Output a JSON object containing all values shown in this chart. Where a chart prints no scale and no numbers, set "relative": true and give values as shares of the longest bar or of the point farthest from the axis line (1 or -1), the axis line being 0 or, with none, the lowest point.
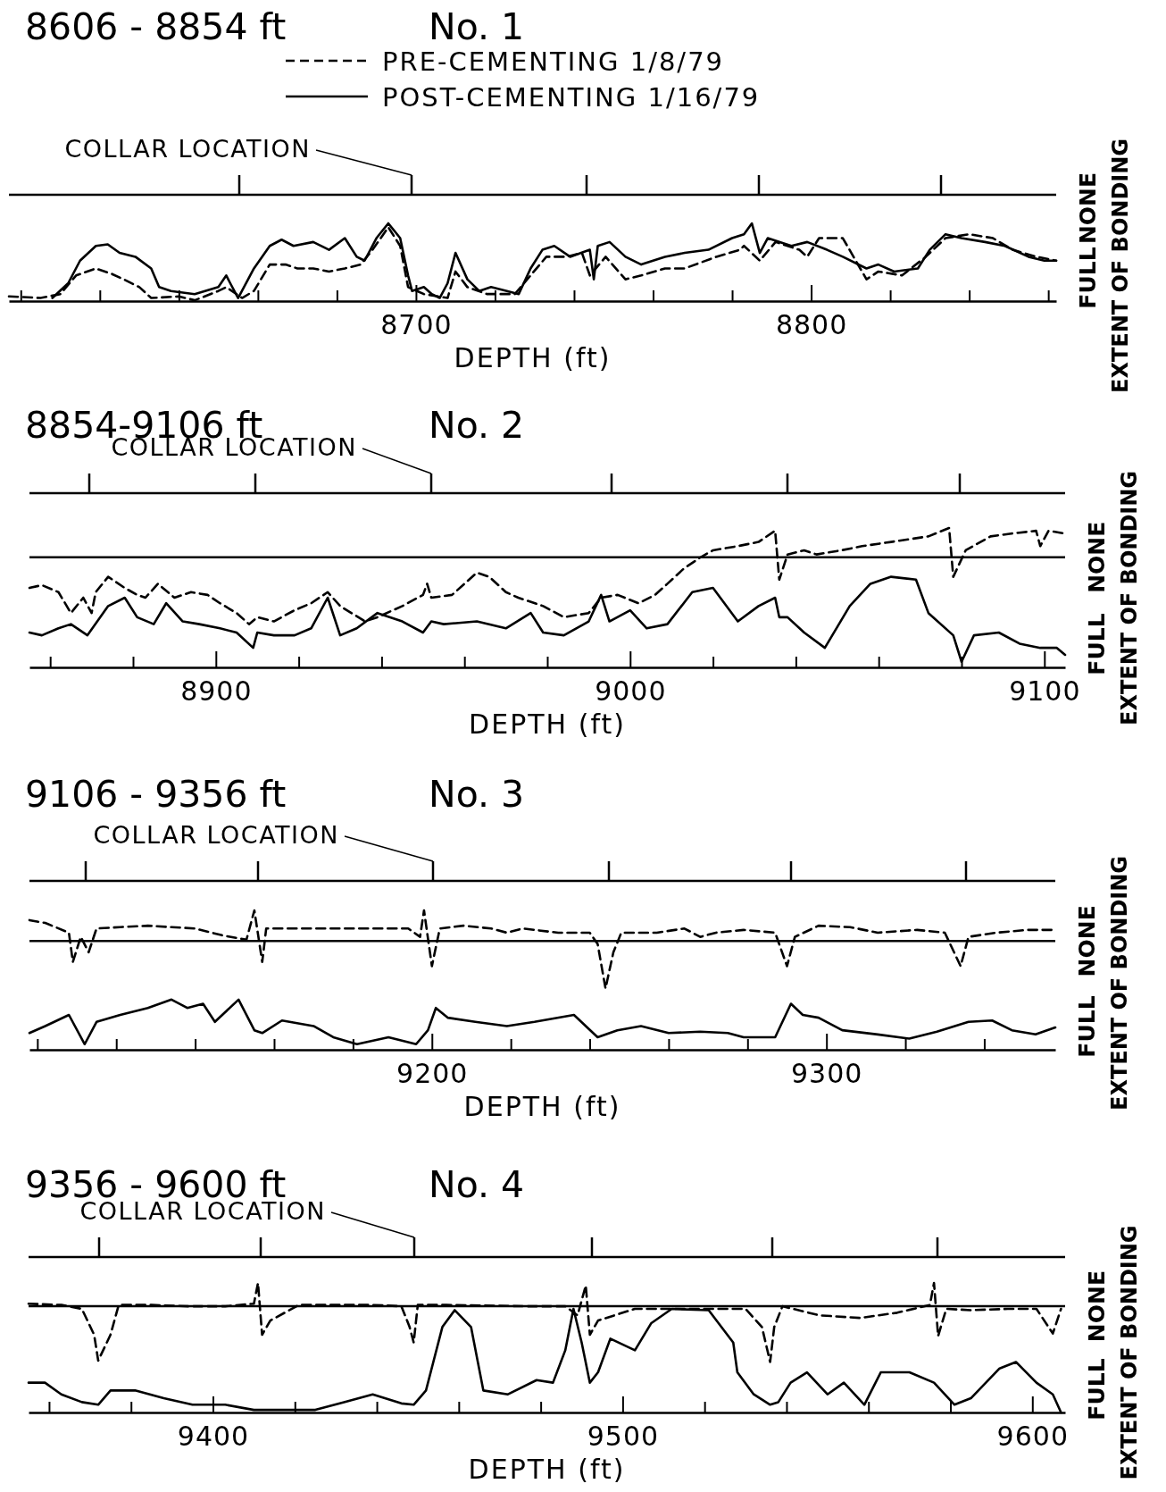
{
  "chart_data": [
    {
      "type": "line",
      "title": "8606 - 8854 ft",
      "subtitle": "No. 1",
      "xlabel": "DEPTH (ft)",
      "ylabel": "EXTENT OF BONDING",
      "legend": "top",
      "relative": true,
      "xlim": [
        8597,
        8862
      ],
      "xticks": [
        {
          "value": 8600,
          "label": null
        },
        {
          "value": 8620,
          "label": null
        },
        {
          "value": 8640,
          "label": null
        },
        {
          "value": 8660,
          "label": null
        },
        {
          "value": 8680,
          "label": null
        },
        8700,
        {
          "value": 8720,
          "label": null
        },
        {
          "value": 8740,
          "label": null
        },
        {
          "value": 8760,
          "label": null
        },
        {
          "value": 8780,
          "label": null
        },
        8800,
        {
          "value": 8820,
          "label": null
        },
        {
          "value": 8840,
          "label": null
        },
        {
          "value": 8860,
          "label": null
        }
      ],
      "annotations": [
        "COLLAR LOCATION",
        "FULL",
        "NONE"
      ],
      "series": [
        {
          "name": "PRE-CEMENTING 1/8/79",
          "color": "#000000",
          "line_style": "dashed",
          "x": [
            8597,
            8605,
            8610,
            8614,
            8619,
            8623,
            8626,
            8630,
            8633,
            8640,
            8644,
            8650,
            8652,
            8656,
            8659,
            8663,
            8667,
            8670,
            8674,
            8678,
            8682,
            8686,
            8689,
            8693,
            8696,
            8698,
            8702,
            8708,
            8710,
            8713,
            8718,
            8725,
            8729,
            8733,
            8738,
            8742,
            8744,
            8748,
            8753,
            8757,
            8763,
            8768,
            8776,
            8782,
            8783,
            8787,
            8791,
            8797,
            8799,
            8802,
            8808,
            8814,
            8817,
            8823,
            8829,
            8834,
            8840,
            8846,
            8851,
            8857,
            8862
          ],
          "values": [
            0.06,
            0.04,
            0.09,
            0.33,
            0.42,
            0.35,
            0.28,
            0.18,
            0.04,
            0.06,
            0.01,
            0.13,
            0.18,
            0.04,
            0.13,
            0.47,
            0.47,
            0.42,
            0.42,
            0.38,
            0.42,
            0.47,
            0.66,
            0.95,
            0.71,
            0.18,
            0.09,
            0.04,
            0.38,
            0.18,
            0.09,
            0.09,
            0.33,
            0.57,
            0.57,
            0.62,
            0.33,
            0.57,
            0.28,
            0.33,
            0.42,
            0.42,
            0.57,
            0.66,
            0.71,
            0.52,
            0.76,
            0.66,
            0.57,
            0.81,
            0.81,
            0.28,
            0.38,
            0.33,
            0.57,
            0.81,
            0.86,
            0.81,
            0.66,
            0.57,
            0.52
          ]
        },
        {
          "name": "POST-CEMENTING 1/16/79",
          "color": "#000000",
          "line_style": "solid",
          "x": [
            8608,
            8612,
            8615,
            8619,
            8622,
            8625,
            8629,
            8633,
            8635,
            8638,
            8644,
            8650,
            8652,
            8653,
            8655,
            8659,
            8663,
            8666,
            8669,
            8674,
            8678,
            8682,
            8685,
            8687,
            8690,
            8693,
            8696,
            8698,
            8699,
            8702,
            8704,
            8706,
            8708,
            8710,
            8713,
            8716,
            8719,
            8723,
            8726,
            8729,
            8732,
            8735,
            8739,
            8744,
            8745,
            8746,
            8749,
            8753,
            8757,
            8763,
            8768,
            8774,
            8780,
            8783,
            8785,
            8787,
            8789,
            8795,
            8799,
            8804,
            8808,
            8814,
            8817,
            8821,
            8827,
            8830,
            8834,
            8838,
            8844,
            8849,
            8855,
            8859,
            8862
          ],
          "values": [
            0.04,
            0.23,
            0.52,
            0.71,
            0.73,
            0.62,
            0.57,
            0.42,
            0.18,
            0.13,
            0.09,
            0.18,
            0.33,
            0.23,
            0.04,
            0.42,
            0.71,
            0.79,
            0.71,
            0.76,
            0.66,
            0.81,
            0.57,
            0.52,
            0.81,
            1.0,
            0.81,
            0.33,
            0.13,
            0.18,
            0.09,
            0.04,
            0.23,
            0.62,
            0.28,
            0.13,
            0.18,
            0.13,
            0.09,
            0.42,
            0.66,
            0.71,
            0.57,
            0.66,
            0.28,
            0.71,
            0.76,
            0.57,
            0.47,
            0.57,
            0.62,
            0.66,
            0.81,
            0.86,
            1.0,
            0.62,
            0.81,
            0.71,
            0.76,
            0.66,
            0.57,
            0.42,
            0.47,
            0.38,
            0.42,
            0.66,
            0.86,
            0.81,
            0.76,
            0.71,
            0.57,
            0.52,
            0.52
          ]
        }
      ]
    },
    {
      "type": "line",
      "title": "8854-9106 ft",
      "subtitle": "No. 2",
      "xlabel": "DEPTH (ft)",
      "ylabel": "EXTENT OF BONDING",
      "relative": true,
      "xlim": [
        8855,
        9105
      ],
      "xticks": [
        {
          "value": 8860,
          "label": null
        },
        {
          "value": 8880,
          "label": null
        },
        8900,
        {
          "value": 8920,
          "label": null
        },
        {
          "value": 8940,
          "label": null
        },
        {
          "value": 8960,
          "label": null
        },
        {
          "value": 8980,
          "label": null
        },
        9000,
        {
          "value": 9020,
          "label": null
        },
        {
          "value": 9040,
          "label": null
        },
        {
          "value": 9060,
          "label": null
        },
        {
          "value": 9080,
          "label": null
        },
        9100
      ],
      "ref_lines": [
        {
          "axis": "y",
          "value": 0.79,
          "label": null
        }
      ],
      "annotations": [
        "COLLAR LOCATION",
        "FULL",
        "NONE"
      ],
      "series": [
        {
          "color": "#000000",
          "line_style": "dashed",
          "x": [
            8855,
            8858,
            8862,
            8865,
            8868,
            8870,
            8871,
            8874,
            8878,
            8881,
            8883,
            8886,
            8890,
            8894,
            8898,
            8901,
            8905,
            8908,
            8910,
            8914,
            8919,
            8923,
            8927,
            8930,
            8936,
            8939,
            8945,
            8950,
            8951,
            8952,
            8957,
            8963,
            8966,
            8970,
            8973,
            8979,
            8984,
            8990,
            8993,
            8997,
            9002,
            9006,
            9009,
            9013,
            9017,
            9020,
            9026,
            9031,
            9035,
            9036,
            9038,
            9042,
            9045,
            9051,
            9056,
            9063,
            9072,
            9077,
            9078,
            9081,
            9087,
            9092,
            9098,
            9099,
            9101,
            9105
          ],
          "values": [
            0.57,
            0.59,
            0.54,
            0.39,
            0.5,
            0.39,
            0.54,
            0.65,
            0.57,
            0.52,
            0.5,
            0.6,
            0.5,
            0.54,
            0.52,
            0.46,
            0.39,
            0.31,
            0.36,
            0.33,
            0.41,
            0.46,
            0.54,
            0.44,
            0.33,
            0.36,
            0.44,
            0.52,
            0.6,
            0.5,
            0.52,
            0.68,
            0.65,
            0.54,
            0.5,
            0.44,
            0.36,
            0.39,
            0.5,
            0.52,
            0.46,
            0.52,
            0.6,
            0.71,
            0.79,
            0.84,
            0.87,
            0.9,
            0.98,
            0.63,
            0.81,
            0.84,
            0.81,
            0.84,
            0.87,
            0.9,
            0.94,
            1,
            0.65,
            0.84,
            0.94,
            0.96,
            0.98,
            0.87,
            0.98,
            0.96
          ]
        },
        {
          "color": "#000000",
          "line_style": "solid",
          "x": [
            8855,
            8858,
            8862,
            8865,
            8869,
            8874,
            8878,
            8881,
            8885,
            8888,
            8892,
            8896,
            8901,
            8905,
            8909,
            8910,
            8914,
            8919,
            8923,
            8927,
            8930,
            8934,
            8939,
            8945,
            8950,
            8952,
            8955,
            8963,
            8970,
            8976,
            8979,
            8984,
            8990,
            8993,
            8995,
            9000,
            9004,
            9009,
            9015,
            9020,
            9026,
            9031,
            9035,
            9036,
            9038,
            9042,
            9047,
            9053,
            9058,
            9063,
            9069,
            9072,
            9078,
            9080,
            9083,
            9089,
            9094,
            9099,
            9103,
            9105
          ],
          "values": [
            0.25,
            0.23,
            0.28,
            0.31,
            0.23,
            0.44,
            0.5,
            0.36,
            0.31,
            0.46,
            0.33,
            0.31,
            0.28,
            0.25,
            0.14,
            0.25,
            0.23,
            0.23,
            0.28,
            0.5,
            0.23,
            0.28,
            0.39,
            0.33,
            0.25,
            0.33,
            0.31,
            0.33,
            0.28,
            0.39,
            0.25,
            0.23,
            0.33,
            0.52,
            0.33,
            0.41,
            0.28,
            0.31,
            0.54,
            0.57,
            0.33,
            0.44,
            0.5,
            0.36,
            0.36,
            0.25,
            0.14,
            0.44,
            0.6,
            0.65,
            0.63,
            0.39,
            0.23,
            0.04,
            0.23,
            0.25,
            0.17,
            0.14,
            0.14,
            0.09
          ]
        }
      ]
    },
    {
      "type": "line",
      "title": "9106 - 9356 ft",
      "subtitle": "No. 3",
      "xlabel": "DEPTH (ft)",
      "ylabel": "EXTENT OF BONDING",
      "relative": true,
      "xlim": [
        9098,
        9358
      ],
      "xticks": [
        {
          "value": 9100,
          "label": null
        },
        {
          "value": 9120,
          "label": null
        },
        {
          "value": 9140,
          "label": null
        },
        {
          "value": 9160,
          "label": null
        },
        {
          "value": 9180,
          "label": null
        },
        9200,
        {
          "value": 9220,
          "label": null
        },
        {
          "value": 9240,
          "label": null
        },
        {
          "value": 9260,
          "label": null
        },
        {
          "value": 9280,
          "label": null
        },
        9300,
        {
          "value": 9320,
          "label": null
        },
        {
          "value": 9340,
          "label": null
        }
      ],
      "ref_lines": [
        {
          "axis": "y",
          "value": 0.78,
          "label": null
        }
      ],
      "annotations": [
        "COLLAR LOCATION",
        "FULL",
        "NONE"
      ],
      "series": [
        {
          "color": "#000000",
          "line_style": "dashed",
          "x": [
            9098,
            9102,
            9108,
            9109,
            9111,
            9113,
            9115,
            9121,
            9128,
            9134,
            9140,
            9147,
            9153,
            9155,
            9157,
            9158,
            9166,
            9175,
            9185,
            9194,
            9197,
            9198,
            9200,
            9202,
            9208,
            9215,
            9219,
            9223,
            9232,
            9240,
            9242,
            9244,
            9246,
            9248,
            9257,
            9264,
            9268,
            9272,
            9279,
            9287,
            9290,
            9292,
            9298,
            9306,
            9313,
            9323,
            9330,
            9334,
            9336,
            9343,
            9351,
            9358
          ],
          "values": [
            0.93,
            0.91,
            0.84,
            0.63,
            0.81,
            0.7,
            0.87,
            0.88,
            0.89,
            0.88,
            0.87,
            0.82,
            0.79,
            1,
            0.63,
            0.87,
            0.87,
            0.87,
            0.87,
            0.87,
            0.81,
            1,
            0.6,
            0.87,
            0.89,
            0.87,
            0.84,
            0.87,
            0.84,
            0.84,
            0.76,
            0.44,
            0.7,
            0.84,
            0.84,
            0.87,
            0.81,
            0.84,
            0.86,
            0.84,
            0.6,
            0.81,
            0.89,
            0.88,
            0.84,
            0.86,
            0.84,
            0.6,
            0.81,
            0.84,
            0.86,
            0.86
          ]
        },
        {
          "color": "#000000",
          "line_style": "solid",
          "x": [
            9098,
            9102,
            9108,
            9112,
            9115,
            9121,
            9128,
            9134,
            9138,
            9142,
            9145,
            9151,
            9155,
            9157,
            9162,
            9170,
            9175,
            9181,
            9189,
            9196,
            9199,
            9201,
            9204,
            9211,
            9219,
            9226,
            9236,
            9242,
            9247,
            9253,
            9260,
            9268,
            9275,
            9279,
            9287,
            9291,
            9294,
            9298,
            9304,
            9313,
            9321,
            9328,
            9336,
            9342,
            9347,
            9353,
            9358
          ],
          "values": [
            0.12,
            0.17,
            0.25,
            0.04,
            0.2,
            0.25,
            0.3,
            0.36,
            0.3,
            0.33,
            0.2,
            0.36,
            0.14,
            0.12,
            0.21,
            0.17,
            0.09,
            0.04,
            0.09,
            0.04,
            0.14,
            0.3,
            0.23,
            0.2,
            0.17,
            0.2,
            0.25,
            0.09,
            0.14,
            0.17,
            0.12,
            0.13,
            0.12,
            0.09,
            0.09,
            0.33,
            0.25,
            0.23,
            0.14,
            0.11,
            0.08,
            0.13,
            0.2,
            0.21,
            0.14,
            0.11,
            0.16
          ]
        }
      ]
    },
    {
      "type": "line",
      "title": "9356 - 9600 ft",
      "subtitle": "No.  4",
      "xlabel": "DEPTH (ft)",
      "ylabel": "EXTENT OF BONDING",
      "relative": true,
      "xlim": [
        9355,
        9608
      ],
      "xticks": [
        {
          "value": 9360,
          "label": null
        },
        {
          "value": 9380,
          "label": null
        },
        9400,
        {
          "value": 9420,
          "label": null
        },
        {
          "value": 9440,
          "label": null
        },
        {
          "value": 9460,
          "label": null
        },
        {
          "value": 9480,
          "label": null
        },
        9500,
        {
          "value": 9520,
          "label": null
        },
        {
          "value": 9540,
          "label": null
        },
        {
          "value": 9560,
          "label": null
        },
        {
          "value": 9580,
          "label": null
        },
        9600
      ],
      "ref_lines": [
        {
          "axis": "y",
          "value": 0.82,
          "label": null
        }
      ],
      "annotations": [
        "COLLAR LOCATION",
        "FULL",
        "NONE"
      ],
      "series": [
        {
          "color": "#000000",
          "line_style": "dashed",
          "x": [
            9355,
            9363,
            9368,
            9371,
            9372,
            9375,
            9377,
            9385,
            9394,
            9403,
            9410,
            9411,
            9412,
            9414,
            9421,
            9430,
            9439,
            9446,
            9448,
            9449,
            9450,
            9457,
            9476,
            9486,
            9489,
            9491,
            9492,
            9494,
            9503,
            9512,
            9521,
            9530,
            9534,
            9536,
            9537,
            9539,
            9548,
            9558,
            9567,
            9575,
            9576,
            9577,
            9579,
            9585,
            9594,
            9601,
            9605,
            9607
          ],
          "values": [
            0.84,
            0.83,
            0.8,
            0.6,
            0.4,
            0.6,
            0.83,
            0.83,
            0.82,
            0.82,
            0.84,
            1,
            0.6,
            0.71,
            0.83,
            0.83,
            0.83,
            0.82,
            0.66,
            0.54,
            0.83,
            0.83,
            0.82,
            0.82,
            0.75,
            0.98,
            0.6,
            0.71,
            0.8,
            0.8,
            0.8,
            0.8,
            0.66,
            0.39,
            0.66,
            0.82,
            0.75,
            0.73,
            0.77,
            0.83,
            1,
            0.59,
            0.8,
            0.79,
            0.8,
            0.8,
            0.61,
            0.8
          ]
        },
        {
          "color": "#000000",
          "line_style": "solid",
          "x": [
            9355,
            9359,
            9363,
            9368,
            9372,
            9375,
            9381,
            9388,
            9395,
            9403,
            9410,
            9417,
            9425,
            9432,
            9439,
            9446,
            9449,
            9452,
            9456,
            9459,
            9463,
            9466,
            9472,
            9479,
            9483,
            9486,
            9488,
            9490,
            9492,
            9494,
            9497,
            9503,
            9507,
            9512,
            9521,
            9527,
            9528,
            9532,
            9536,
            9538,
            9541,
            9545,
            9550,
            9554,
            9559,
            9563,
            9570,
            9576,
            9581,
            9585,
            9592,
            9596,
            9601,
            9605,
            9607
          ],
          "values": [
            0.23,
            0.23,
            0.14,
            0.08,
            0.06,
            0.17,
            0.17,
            0.11,
            0.06,
            0.06,
            0.02,
            0.02,
            0.02,
            0.08,
            0.14,
            0.07,
            0.06,
            0.17,
            0.66,
            0.79,
            0.66,
            0.17,
            0.14,
            0.25,
            0.23,
            0.48,
            0.8,
            0.54,
            0.23,
            0.31,
            0.57,
            0.48,
            0.69,
            0.8,
            0.79,
            0.54,
            0.31,
            0.14,
            0.06,
            0.08,
            0.23,
            0.31,
            0.14,
            0.23,
            0.06,
            0.31,
            0.31,
            0.23,
            0.06,
            0.11,
            0.34,
            0.39,
            0.23,
            0.14,
            0
          ]
        }
      ]
    }
  ]
}
